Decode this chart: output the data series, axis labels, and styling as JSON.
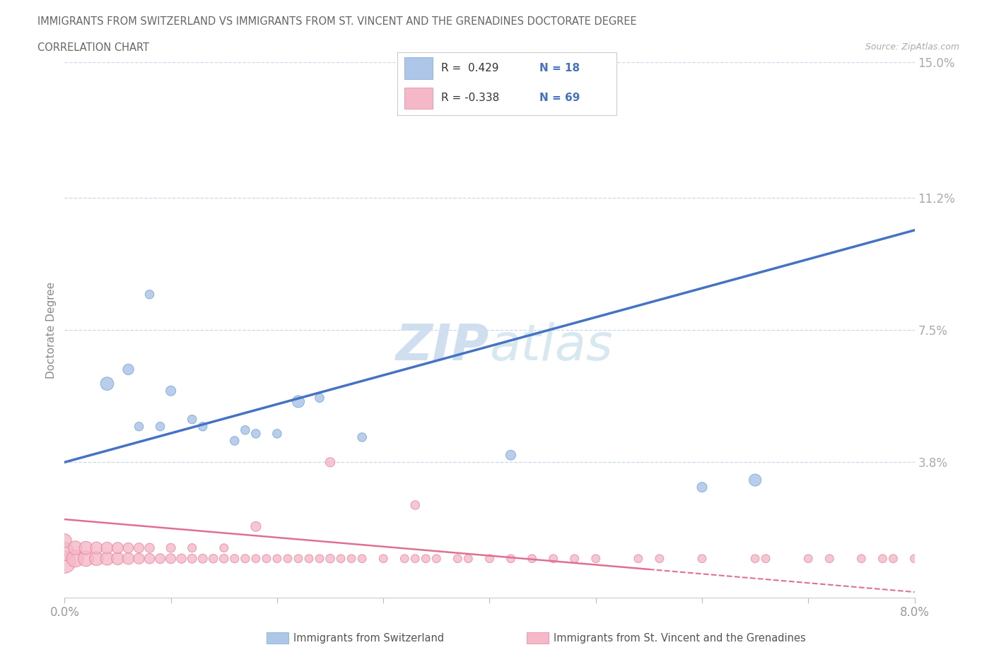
{
  "title_line1": "IMMIGRANTS FROM SWITZERLAND VS IMMIGRANTS FROM ST. VINCENT AND THE GRENADINES DOCTORATE DEGREE",
  "title_line2": "CORRELATION CHART",
  "source": "Source: ZipAtlas.com",
  "ylabel": "Doctorate Degree",
  "xlim": [
    0.0,
    0.08
  ],
  "ylim": [
    0.0,
    0.15
  ],
  "xticks": [
    0.0,
    0.01,
    0.02,
    0.03,
    0.04,
    0.05,
    0.06,
    0.07,
    0.08
  ],
  "xticklabels": [
    "0.0%",
    "",
    "",
    "",
    "",
    "",
    "",
    "",
    "8.0%"
  ],
  "ytick_values": [
    0.0,
    0.038,
    0.075,
    0.112,
    0.15
  ],
  "ytick_labels": [
    "",
    "3.8%",
    "7.5%",
    "11.2%",
    "15.0%"
  ],
  "switzerland_color": "#aec6e8",
  "switzerland_edge": "#6fa8d8",
  "stv_color": "#f4b8c8",
  "stv_edge": "#e88098",
  "trend_blue": "#4472c4",
  "trend_pink": "#e07090",
  "watermark_color": "#d0dff0",
  "legend_r1": "R =  0.429",
  "legend_n1": "N = 18",
  "legend_r2": "R = -0.338",
  "legend_n2": "N = 69",
  "sw_trend_x0": 0.0,
  "sw_trend_y0": 0.038,
  "sw_trend_x1": 0.08,
  "sw_trend_y1": 0.103,
  "stv_trend_x0": 0.0,
  "stv_trend_y0": 0.022,
  "stv_trend_x1": 0.055,
  "stv_trend_y1": 0.008,
  "switzerland_x": [
    0.004,
    0.006,
    0.007,
    0.008,
    0.009,
    0.01,
    0.012,
    0.013,
    0.016,
    0.017,
    0.018,
    0.02,
    0.022,
    0.024,
    0.028,
    0.042,
    0.065,
    0.06
  ],
  "switzerland_y": [
    0.06,
    0.064,
    0.048,
    0.085,
    0.048,
    0.058,
    0.05,
    0.048,
    0.044,
    0.047,
    0.046,
    0.046,
    0.055,
    0.056,
    0.045,
    0.04,
    0.033,
    0.031
  ],
  "switzerland_sizes": [
    180,
    120,
    80,
    80,
    80,
    100,
    80,
    80,
    80,
    80,
    80,
    80,
    150,
    80,
    80,
    100,
    150,
    100
  ],
  "stv_x": [
    0.0,
    0.0,
    0.0,
    0.001,
    0.001,
    0.002,
    0.002,
    0.003,
    0.003,
    0.004,
    0.004,
    0.005,
    0.005,
    0.006,
    0.006,
    0.007,
    0.007,
    0.008,
    0.008,
    0.009,
    0.01,
    0.01,
    0.011,
    0.012,
    0.012,
    0.013,
    0.014,
    0.015,
    0.015,
    0.016,
    0.017,
    0.018,
    0.018,
    0.019,
    0.02,
    0.021,
    0.022,
    0.023,
    0.024,
    0.025,
    0.026,
    0.027,
    0.028,
    0.03,
    0.032,
    0.033,
    0.034,
    0.035,
    0.037,
    0.038,
    0.04,
    0.042,
    0.044,
    0.046,
    0.048,
    0.05,
    0.054,
    0.056,
    0.06,
    0.065,
    0.066,
    0.07,
    0.072,
    0.075,
    0.077,
    0.078,
    0.08,
    0.033,
    0.025
  ],
  "stv_y": [
    0.01,
    0.013,
    0.016,
    0.011,
    0.014,
    0.011,
    0.014,
    0.011,
    0.014,
    0.011,
    0.014,
    0.011,
    0.014,
    0.011,
    0.014,
    0.011,
    0.014,
    0.011,
    0.014,
    0.011,
    0.011,
    0.014,
    0.011,
    0.011,
    0.014,
    0.011,
    0.011,
    0.011,
    0.014,
    0.011,
    0.011,
    0.02,
    0.011,
    0.011,
    0.011,
    0.011,
    0.011,
    0.011,
    0.011,
    0.011,
    0.011,
    0.011,
    0.011,
    0.011,
    0.011,
    0.011,
    0.011,
    0.011,
    0.011,
    0.011,
    0.011,
    0.011,
    0.011,
    0.011,
    0.011,
    0.011,
    0.011,
    0.011,
    0.011,
    0.011,
    0.011,
    0.011,
    0.011,
    0.011,
    0.011,
    0.011,
    0.011,
    0.026,
    0.038
  ],
  "stv_sizes": [
    500,
    350,
    200,
    300,
    200,
    250,
    180,
    200,
    150,
    180,
    140,
    160,
    130,
    140,
    110,
    120,
    100,
    110,
    90,
    100,
    100,
    85,
    90,
    85,
    75,
    85,
    80,
    80,
    70,
    75,
    75,
    100,
    70,
    70,
    70,
    70,
    70,
    70,
    70,
    80,
    70,
    70,
    70,
    70,
    70,
    70,
    70,
    70,
    70,
    70,
    70,
    70,
    70,
    70,
    70,
    70,
    70,
    70,
    70,
    70,
    70,
    70,
    70,
    70,
    70,
    70,
    70,
    80,
    90
  ]
}
